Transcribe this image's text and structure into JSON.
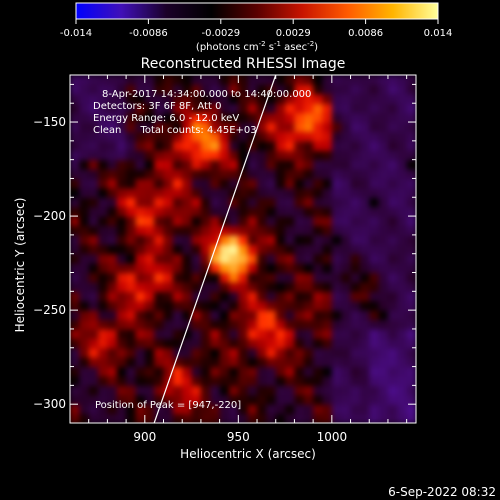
{
  "colorbar": {
    "ticks": [
      "-0.014",
      "-0.0086",
      "-0.0029",
      "0.0029",
      "0.0086",
      "0.014"
    ],
    "unit_prefix": "(photons cm",
    "unit_sup1": "-2",
    "unit_mid1": " s",
    "unit_sup2": "-1",
    "unit_mid2": " asec",
    "unit_sup3": "-2",
    "unit_suffix": ")",
    "colors": [
      "#0000ff",
      "#4010b8",
      "#1a0028",
      "#000000",
      "#5a0000",
      "#c81400",
      "#ff5a00",
      "#ffb400",
      "#ffff9c"
    ]
  },
  "chart_data": {
    "type": "heatmap",
    "title": "Reconstructed RHESSI Image",
    "xlabel": "Heliocentric X (arcsec)",
    "ylabel": "Heliocentric Y (arcsec)",
    "xlim": [
      860,
      1045
    ],
    "ylim": [
      -310,
      -125
    ],
    "x_ticks": [
      900,
      950,
      1000
    ],
    "y_ticks": [
      -150,
      -200,
      -250,
      -300
    ],
    "value_range": [
      -0.014,
      0.014
    ],
    "peak": [
      947,
      -220
    ],
    "limb_line": [
      [
        905,
        -310
      ],
      [
        970,
        -125
      ]
    ],
    "annotations": [
      "8-Apr-2017 14:34:00.000 to 14:40:00.000",
      "Detectors: 3F 6F 8F, Att 0",
      "Energy Range: 6.0 - 12.0 keV",
      "Clean      Total counts: 4.45E+03"
    ],
    "peak_text": "Position of Peak = [947,-220]"
  },
  "footer": {
    "timestamp": "6-Sep-2022 08:32"
  }
}
